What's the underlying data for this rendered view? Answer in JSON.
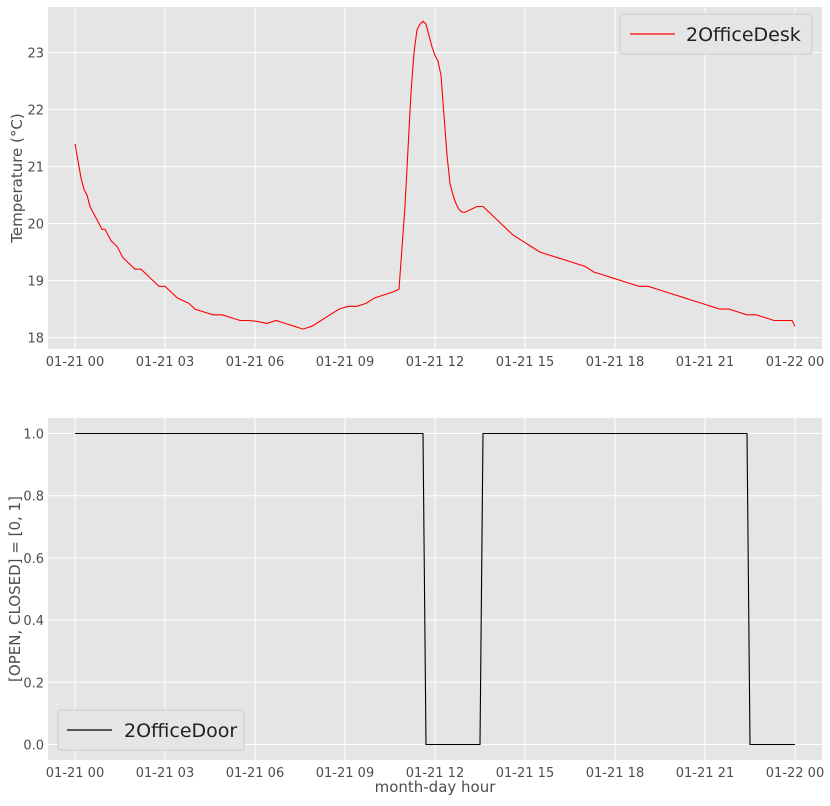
{
  "chart_data": [
    {
      "type": "line",
      "title": "",
      "xlabel": "",
      "ylabel": "Temperature (°C)",
      "ylim": [
        17.8,
        23.8
      ],
      "xlim_hours": [
        -0.9,
        24.9
      ],
      "x_tick_labels": [
        "01-21 00",
        "01-21 03",
        "01-21 06",
        "01-21 09",
        "01-21 12",
        "01-21 15",
        "01-21 18",
        "01-21 21",
        "01-22 00"
      ],
      "y_ticks": [
        18,
        19,
        20,
        21,
        22,
        23
      ],
      "grid": true,
      "legend": "top-right",
      "series": [
        {
          "name": "2OfficeDesk",
          "color": "#ff0000",
          "x_hours": [
            0.0,
            0.1,
            0.2,
            0.3,
            0.4,
            0.5,
            0.6,
            0.7,
            0.8,
            0.9,
            1.0,
            1.2,
            1.4,
            1.6,
            1.8,
            2.0,
            2.2,
            2.4,
            2.6,
            2.8,
            3.0,
            3.2,
            3.4,
            3.6,
            3.8,
            4.0,
            4.3,
            4.6,
            4.9,
            5.2,
            5.5,
            5.8,
            6.1,
            6.4,
            6.7,
            7.0,
            7.3,
            7.6,
            7.9,
            8.2,
            8.5,
            8.8,
            9.1,
            9.4,
            9.7,
            10.0,
            10.3,
            10.6,
            10.8,
            11.0,
            11.1,
            11.2,
            11.3,
            11.4,
            11.5,
            11.6,
            11.7,
            11.8,
            11.9,
            12.0,
            12.1,
            12.2,
            12.3,
            12.4,
            12.5,
            12.6,
            12.7,
            12.8,
            12.9,
            13.0,
            13.2,
            13.4,
            13.6,
            13.8,
            14.0,
            14.3,
            14.6,
            14.9,
            15.2,
            15.5,
            15.8,
            16.1,
            16.4,
            16.7,
            17.0,
            17.3,
            17.6,
            17.9,
            18.2,
            18.5,
            18.8,
            19.1,
            19.4,
            19.7,
            20.0,
            20.3,
            20.6,
            20.9,
            21.2,
            21.5,
            21.8,
            22.1,
            22.4,
            22.7,
            23.0,
            23.3,
            23.6,
            23.9,
            24.0
          ],
          "values": [
            21.4,
            21.1,
            20.8,
            20.6,
            20.5,
            20.3,
            20.2,
            20.1,
            20.0,
            19.9,
            19.9,
            19.7,
            19.6,
            19.4,
            19.3,
            19.2,
            19.2,
            19.1,
            19.0,
            18.9,
            18.9,
            18.8,
            18.7,
            18.65,
            18.6,
            18.5,
            18.45,
            18.4,
            18.4,
            18.35,
            18.3,
            18.3,
            18.28,
            18.25,
            18.3,
            18.25,
            18.2,
            18.15,
            18.2,
            18.3,
            18.4,
            18.5,
            18.55,
            18.55,
            18.6,
            18.7,
            18.75,
            18.8,
            18.85,
            20.3,
            21.3,
            22.3,
            23.0,
            23.4,
            23.5,
            23.55,
            23.5,
            23.3,
            23.1,
            22.95,
            22.85,
            22.6,
            21.9,
            21.2,
            20.7,
            20.5,
            20.35,
            20.25,
            20.2,
            20.2,
            20.25,
            20.3,
            20.3,
            20.2,
            20.1,
            19.95,
            19.8,
            19.7,
            19.6,
            19.5,
            19.45,
            19.4,
            19.35,
            19.3,
            19.25,
            19.15,
            19.1,
            19.05,
            19.0,
            18.95,
            18.9,
            18.9,
            18.85,
            18.8,
            18.75,
            18.7,
            18.65,
            18.6,
            18.55,
            18.5,
            18.5,
            18.45,
            18.4,
            18.4,
            18.35,
            18.3,
            18.3,
            18.3,
            18.2
          ]
        }
      ]
    },
    {
      "type": "line",
      "title": "",
      "xlabel": "month-day hour",
      "ylabel": "[OPEN, CLOSED] = [0, 1]",
      "ylim": [
        -0.05,
        1.05
      ],
      "xlim_hours": [
        -0.9,
        24.9
      ],
      "x_tick_labels": [
        "01-21 00",
        "01-21 03",
        "01-21 06",
        "01-21 09",
        "01-21 12",
        "01-21 15",
        "01-21 18",
        "01-21 21",
        "01-22 00"
      ],
      "y_ticks": [
        "0.0",
        "0.2",
        "0.4",
        "0.6",
        "0.8",
        "1.0"
      ],
      "grid": true,
      "legend": "bottom-left",
      "series": [
        {
          "name": "2OfficeDoor",
          "color": "#000000",
          "x_hours": [
            0,
            11.6,
            11.7,
            13.5,
            13.6,
            22.4,
            22.5,
            24
          ],
          "values": [
            1,
            1,
            0,
            0,
            1,
            1,
            0,
            0
          ]
        }
      ]
    }
  ]
}
